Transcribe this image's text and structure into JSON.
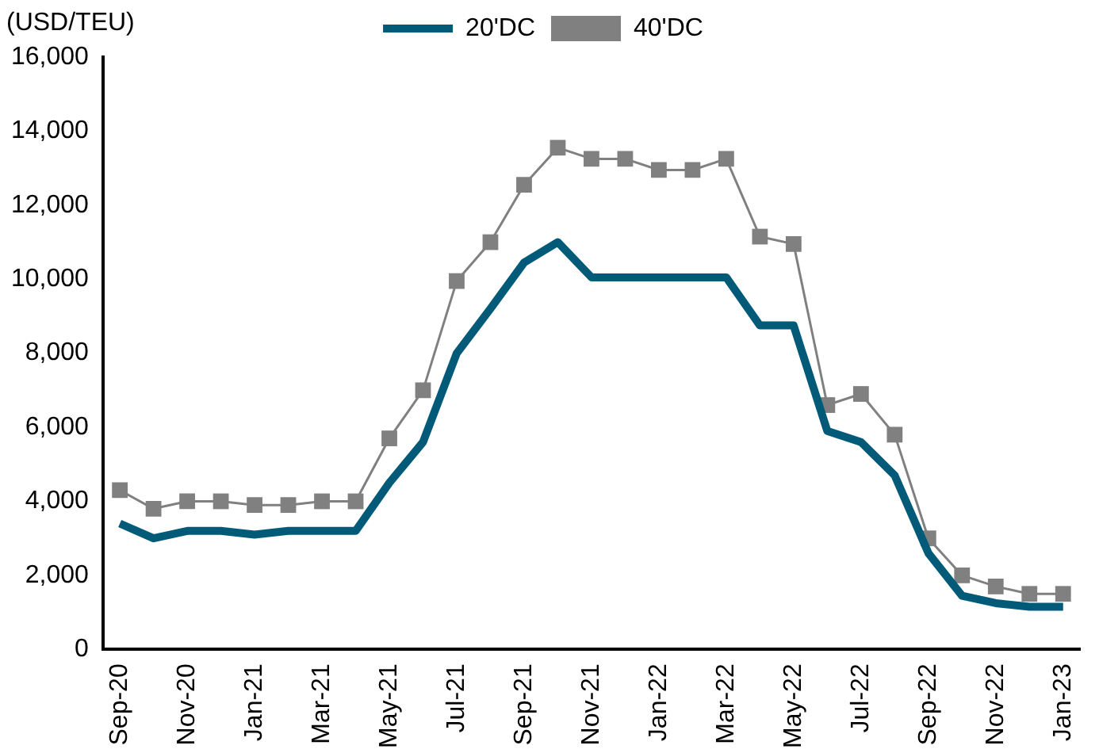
{
  "chart_data": {
    "type": "line",
    "ylabel": "(USD/TEU)",
    "categories": [
      "Sep-20",
      null,
      "Nov-20",
      null,
      "Jan-21",
      null,
      "Mar-21",
      null,
      "May-21",
      null,
      "Jul-21",
      null,
      "Sep-21",
      null,
      "Nov-21",
      null,
      "Jan-22",
      null,
      "Mar-22",
      null,
      "May-22",
      null,
      "Jul-22",
      null,
      "Sep-22",
      null,
      "Nov-22",
      null,
      "Jan-23"
    ],
    "series": [
      {
        "name": "20'DC",
        "color": "#005a78",
        "marker": "none",
        "values": [
          3400,
          3000,
          3200,
          3200,
          3100,
          3200,
          3200,
          3200,
          4500,
          5600,
          8000,
          9200,
          10450,
          11000,
          10050,
          10050,
          10050,
          10050,
          10050,
          8750,
          8750,
          5900,
          5600,
          4700,
          2600,
          1450,
          1250,
          1150,
          1150
        ]
      },
      {
        "name": "40'DC",
        "color": "#808080",
        "marker": "square",
        "values": [
          4300,
          3800,
          4000,
          4000,
          3900,
          3900,
          4000,
          4000,
          5700,
          7000,
          9950,
          11000,
          12550,
          13550,
          13250,
          13250,
          12950,
          12950,
          13250,
          11150,
          10950,
          6600,
          6900,
          5800,
          3000,
          2000,
          1700,
          1500,
          1500
        ]
      }
    ],
    "ylim": [
      0,
      16000
    ],
    "yticks": [
      0,
      {
        "value": 2000,
        "label": "2,000"
      },
      {
        "value": 4000,
        "label": "4,000"
      },
      {
        "value": 6000,
        "label": "6,000"
      },
      {
        "value": 8000,
        "label": "8,000"
      },
      {
        "value": 10000,
        "label": "10,000"
      },
      {
        "value": 12000,
        "label": "12,000"
      },
      {
        "value": 14000,
        "label": "14,000"
      },
      {
        "value": 16000,
        "label": "16,000"
      }
    ],
    "grid": false,
    "legend": "top"
  }
}
